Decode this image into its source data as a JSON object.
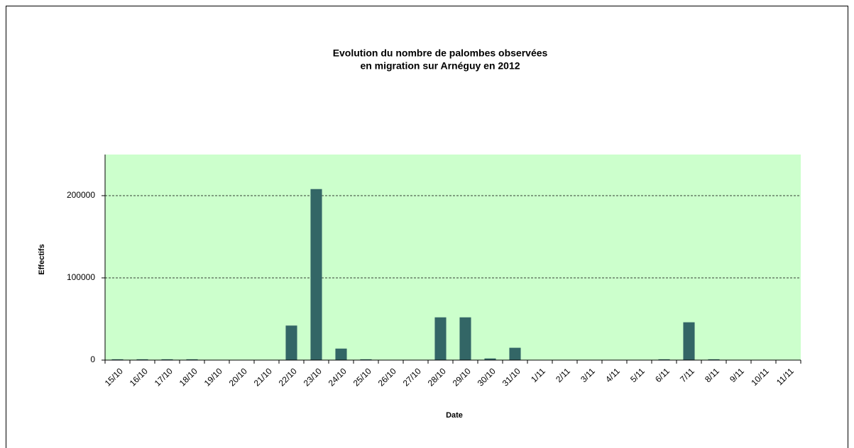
{
  "chart_data": {
    "type": "bar",
    "title": [
      "Evolution du nombre de palombes observées",
      "en migration sur Arnéguy en 2012"
    ],
    "x_label": "Date",
    "y_label": "Effectifs",
    "categories": [
      "15/10",
      "16/10",
      "17/10",
      "18/10",
      "19/10",
      "20/10",
      "21/10",
      "22/10",
      "23/10",
      "24/10",
      "25/10",
      "26/10",
      "27/10",
      "28/10",
      "29/10",
      "30/10",
      "31/10",
      "1/11",
      "2/11",
      "3/11",
      "4/11",
      "5/11",
      "6/11",
      "7/11",
      "8/11",
      "9/11",
      "10/11",
      "11/11"
    ],
    "values": [
      1000,
      1000,
      1000,
      1000,
      0,
      0,
      0,
      42000,
      208000,
      14000,
      1000,
      0,
      0,
      52000,
      52000,
      2000,
      15000,
      0,
      0,
      0,
      0,
      0,
      1000,
      46000,
      1000,
      0,
      0,
      0
    ],
    "color": "#336666",
    "plot_background": "#ccffcc",
    "ylim": [
      0,
      250000
    ],
    "yticks": [
      0,
      100000,
      200000
    ],
    "grid": true
  }
}
